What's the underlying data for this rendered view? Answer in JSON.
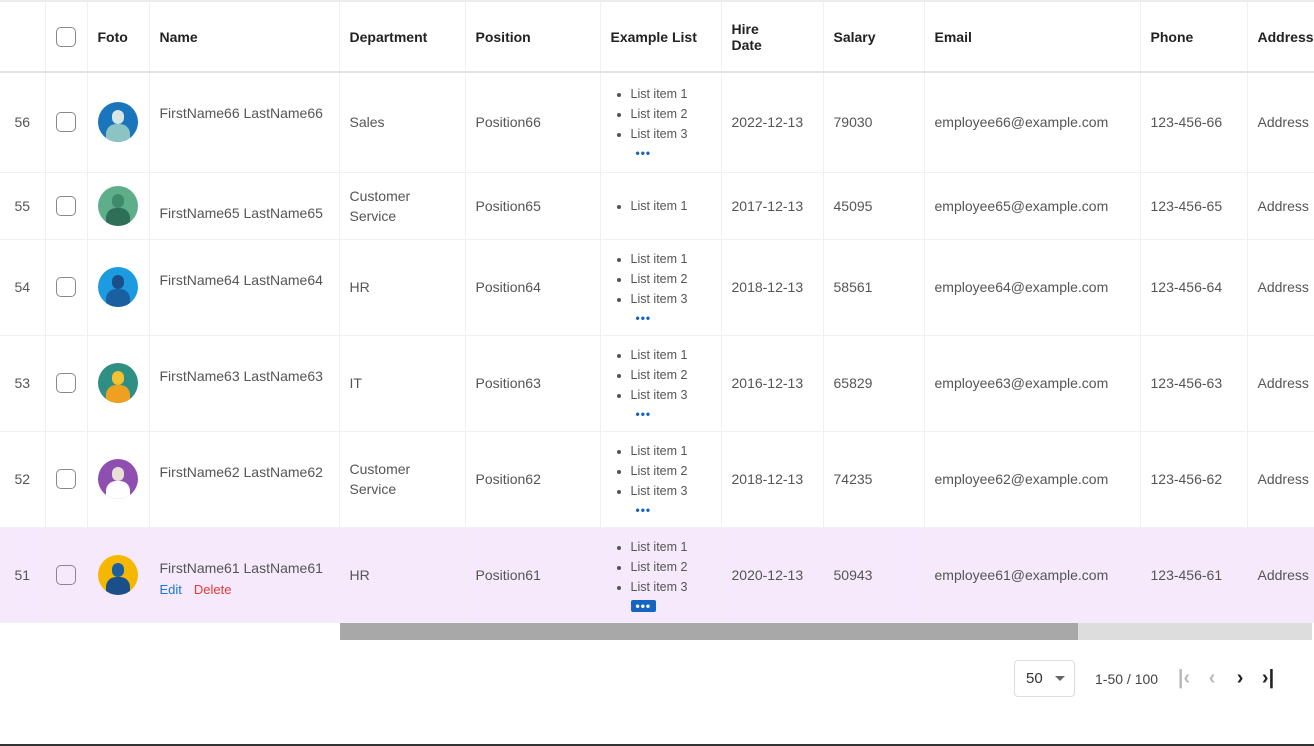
{
  "columns": [
    "",
    "",
    "Foto",
    "Name",
    "Department",
    "Position",
    "Example List",
    "Hire Date",
    "Salary",
    "Email",
    "Phone",
    "Address"
  ],
  "rows": [
    {
      "num": "56",
      "name": "FirstName66 LastName66",
      "dept": "Sales",
      "pos": "Position66",
      "list": [
        "List item 1",
        "List item 2",
        "List item 3"
      ],
      "more": true,
      "hire": "2022-12-13",
      "salary": "79030",
      "email": "employee66@example.com",
      "phone": "123-456-66",
      "address": "Address",
      "avatar": {
        "bg": "#1b75bc",
        "head": "#d6e6e4",
        "body": "#8cc4c4"
      }
    },
    {
      "num": "55",
      "name": "FirstName65 LastName65",
      "dept": "Customer Service",
      "pos": "Position65",
      "list": [
        "List item 1"
      ],
      "more": false,
      "hire": "2017-12-13",
      "salary": "45095",
      "email": "employee65@example.com",
      "phone": "123-456-65",
      "address": "Address",
      "avatar": {
        "bg": "#5fae8a",
        "head": "#3f8a6c",
        "body": "#2f6f58"
      }
    },
    {
      "num": "54",
      "name": "FirstName64 LastName64",
      "dept": "HR",
      "pos": "Position64",
      "list": [
        "List item 1",
        "List item 2",
        "List item 3"
      ],
      "more": true,
      "hire": "2018-12-13",
      "salary": "58561",
      "email": "employee64@example.com",
      "phone": "123-456-64",
      "address": "Address",
      "avatar": {
        "bg": "#1d9be0",
        "head": "#1a4f8a",
        "body": "#1a5fa0"
      }
    },
    {
      "num": "53",
      "name": "FirstName63 LastName63",
      "dept": "IT",
      "pos": "Position63",
      "list": [
        "List item 1",
        "List item 2",
        "List item 3"
      ],
      "more": true,
      "hire": "2016-12-13",
      "salary": "65829",
      "email": "employee63@example.com",
      "phone": "123-456-63",
      "address": "Address",
      "avatar": {
        "bg": "#2f8f84",
        "head": "#f2c230",
        "body": "#f0a020"
      }
    },
    {
      "num": "52",
      "name": "FirstName62 LastName62",
      "dept": "Customer Service",
      "pos": "Position62",
      "list": [
        "List item 1",
        "List item 2",
        "List item 3"
      ],
      "more": true,
      "hire": "2018-12-13",
      "salary": "74235",
      "email": "employee62@example.com",
      "phone": "123-456-62",
      "address": "Address",
      "avatar": {
        "bg": "#8e4fb0",
        "head": "#e8e0d8",
        "body": "#ffffff"
      }
    },
    {
      "num": "51",
      "name": "FirstName61 LastName61",
      "dept": "HR",
      "pos": "Position61",
      "list": [
        "List item 1",
        "List item 2",
        "List item 3"
      ],
      "more": true,
      "hire": "2020-12-13",
      "salary": "50943",
      "email": "employee61@example.com",
      "phone": "123-456-61",
      "address": "Address",
      "selected": true,
      "edit": "Edit",
      "delete": "Delete",
      "avatar": {
        "bg": "#f5b700",
        "head": "#1a5fa0",
        "body": "#1a4f8a"
      }
    }
  ],
  "more_label": "•••",
  "pagination": {
    "page_size": "50",
    "range": "1-50 / 100",
    "first": "|‹",
    "prev": "‹",
    "next": "›",
    "last": "›|"
  },
  "colors": {
    "selected_row": "#f6e9fb",
    "accent": "#1565c0",
    "delete": "#e53935"
  }
}
